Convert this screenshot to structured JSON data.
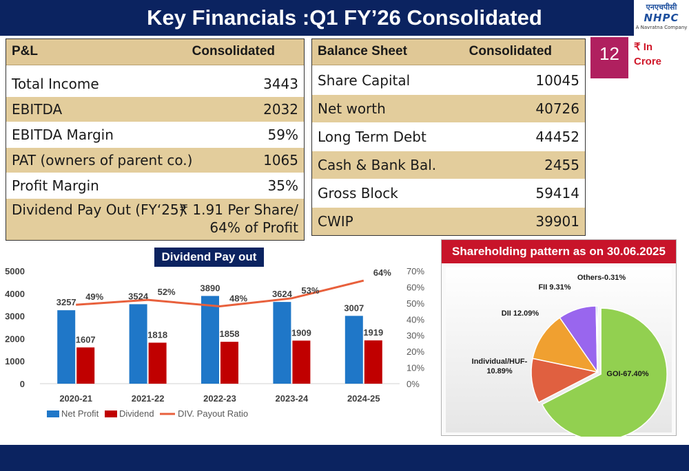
{
  "header": {
    "title": "Key Financials :Q1 FY’26 Consolidated",
    "logo_hindi": "एनएचपीसी",
    "logo_main": "NHPC",
    "logo_sub": "A Navratna Company"
  },
  "page_number": "12",
  "unit_note": {
    "line1": "₹ In",
    "line2": "Crore"
  },
  "pl_table": {
    "header": {
      "label": "P&L",
      "value": "Consolidated"
    },
    "rows": [
      {
        "label": "Total Income",
        "value": "3443"
      },
      {
        "label": "EBITDA",
        "value": "2032"
      },
      {
        "label": "EBITDA Margin",
        "value": "59%"
      },
      {
        "label": "PAT (owners of parent co.)",
        "value": "1065"
      },
      {
        "label": "Profit Margin",
        "value": "35%"
      },
      {
        "label": "Dividend Pay Out (FY‘25)",
        "value_line1": "₹ 1.91 Per Share/",
        "value_line2": "64% of Profit"
      }
    ]
  },
  "bs_table": {
    "header": {
      "label": "Balance Sheet",
      "value": "Consolidated"
    },
    "rows": [
      {
        "label": "Share Capital",
        "value": "10045"
      },
      {
        "label": "Net worth",
        "value": "40726"
      },
      {
        "label": "Long Term Debt",
        "value": "44452"
      },
      {
        "label": "Cash & Bank Bal.",
        "value": "2455"
      },
      {
        "label": "Gross Block",
        "value": "59414"
      },
      {
        "label": "CWIP",
        "value": "39901"
      }
    ]
  },
  "dividend_chart_title": "Dividend Pay out",
  "shareholding_title": "Shareholding pattern as on 30.06.2025",
  "colors": {
    "navy": "#0b2360",
    "tan": "#e3cd9c",
    "net_profit": "#1f77c8",
    "dividend": "#c00000",
    "payout_line": "#e8603c",
    "page_badge": "#b0205f",
    "shareholding_header": "#c8142a"
  },
  "chart_data": [
    {
      "type": "bar",
      "title": "Dividend Pay out",
      "categories": [
        "2020-21",
        "2021-22",
        "2022-23",
        "2023-24",
        "2024-25"
      ],
      "series": [
        {
          "name": "Net Profit",
          "kind": "bar",
          "axis": "left",
          "color": "#1f77c8",
          "values": [
            3257,
            3524,
            3890,
            3624,
            3007
          ]
        },
        {
          "name": "Dividend",
          "kind": "bar",
          "axis": "left",
          "color": "#c00000",
          "values": [
            1607,
            1818,
            1858,
            1909,
            1919
          ]
        },
        {
          "name": "DIV. Payout Ratio",
          "kind": "line",
          "axis": "right",
          "color": "#e8603c",
          "values": [
            49,
            52,
            48,
            53,
            64
          ]
        }
      ],
      "ylim": [
        0,
        5000
      ],
      "yticks": [
        "0",
        "1000",
        "2000",
        "3000",
        "4000",
        "5000"
      ],
      "y2lim": [
        0,
        70
      ],
      "y2ticks": [
        "0%",
        "10%",
        "20%",
        "30%",
        "40%",
        "50%",
        "60%",
        "70%"
      ],
      "line_labels": [
        "49%",
        "52%",
        "48%",
        "53%",
        "64%"
      ],
      "legend_position": "bottom-left",
      "grid": false
    },
    {
      "type": "pie",
      "title": "Shareholding pattern as on 30.06.2025",
      "slices": [
        {
          "name": "GOI",
          "value": 67.4,
          "label": "GOI-67.40%",
          "color": "#92d050"
        },
        {
          "name": "Individual/HUF",
          "value": 10.89,
          "label_line1": "Individual/HUF-",
          "label_line2": "10.89%",
          "color": "#e06040"
        },
        {
          "name": "DII",
          "value": 12.09,
          "label": "DII 12.09%",
          "color": "#f0a030"
        },
        {
          "name": "FII",
          "value": 9.31,
          "label": "FII 9.31%",
          "color": "#9966ee"
        },
        {
          "name": "Others",
          "value": 0.31,
          "label": "Others-0.31%",
          "color": "#4472c4"
        }
      ]
    }
  ]
}
